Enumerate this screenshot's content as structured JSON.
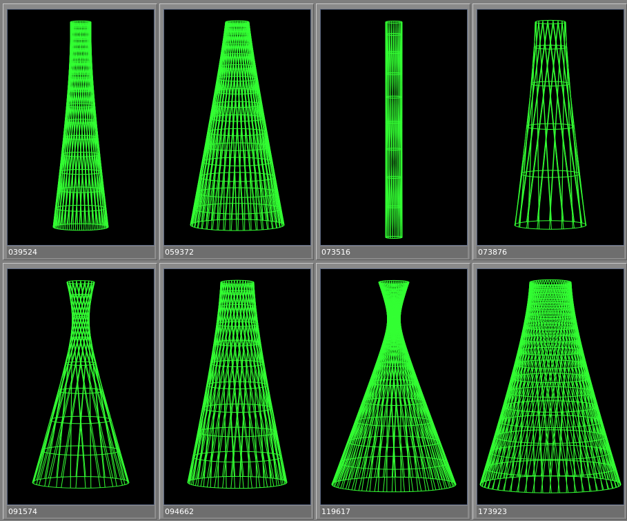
{
  "thumbnails": [
    {
      "label": "039524"
    },
    {
      "label": "059372"
    },
    {
      "label": "073516"
    },
    {
      "label": "073876"
    },
    {
      "label": "091574"
    },
    {
      "label": "094662"
    },
    {
      "label": "119617"
    },
    {
      "label": "173923"
    }
  ]
}
